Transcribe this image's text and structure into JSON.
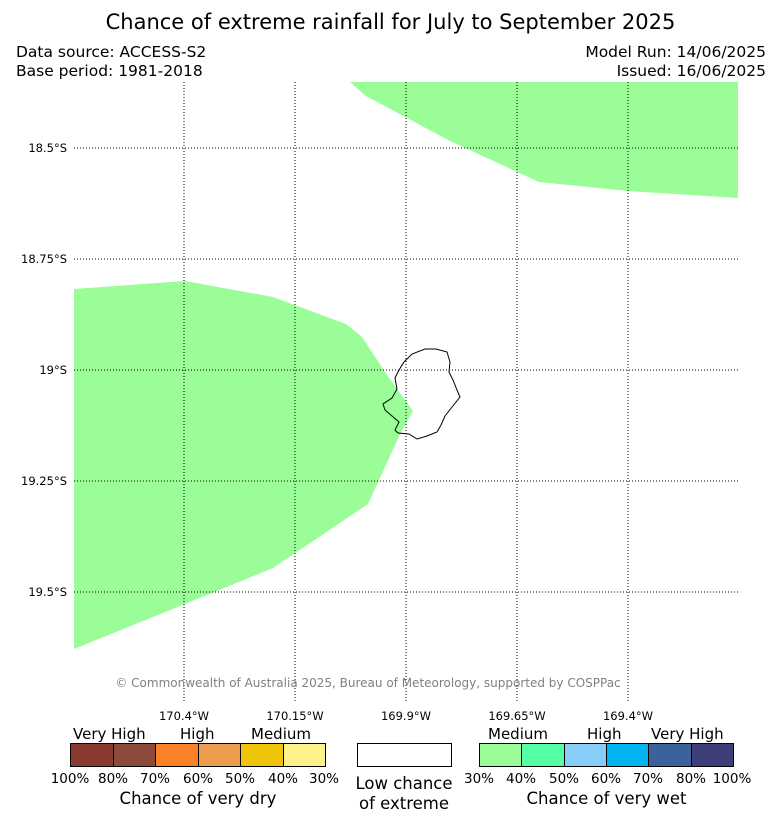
{
  "title": "Chance of extreme rainfall for July to September 2025",
  "data_source": "Data source: ACCESS-S2",
  "base_period": "Base period: 1981-2018",
  "model_run": "Model Run: 14/06/2025",
  "issued": "Issued: 16/06/2025",
  "copyright": "© Commonwealth of Australia 2025, Bureau of Meteorology, supported by COSPPac",
  "map": {
    "lat_labels": [
      "18.5°S",
      "18.75°S",
      "19°S",
      "19.25°S",
      "19.5°S"
    ],
    "lon_labels": [
      "170.4°W",
      "170.15°W",
      "169.9°W",
      "169.65°W",
      "169.4°W"
    ],
    "region_color": "#9afd98",
    "coast_color": "#000000"
  },
  "legend": {
    "dry": {
      "caption": "Chance of very dry",
      "category_labels": [
        "Very High",
        "High",
        "Medium"
      ],
      "tick_labels": [
        "100%",
        "80%",
        "70%",
        "60%",
        "50%",
        "40%",
        "30%"
      ],
      "colors": [
        "#8b3a2f",
        "#8b4a3a",
        "#fc8028",
        "#ed9b4c",
        "#f0c40a",
        "#fcf289"
      ]
    },
    "low": {
      "caption_line1": "Low chance",
      "caption_line2": "of extreme",
      "color": "#ffffff"
    },
    "wet": {
      "caption": "Chance of very wet",
      "category_labels": [
        "Medium",
        "High",
        "Very High"
      ],
      "tick_labels": [
        "30%",
        "40%",
        "50%",
        "60%",
        "70%",
        "80%",
        "100%"
      ],
      "colors": [
        "#9afd98",
        "#55fda5",
        "#88cdf7",
        "#01b3ef",
        "#3a629c",
        "#3e3f7a"
      ]
    }
  }
}
